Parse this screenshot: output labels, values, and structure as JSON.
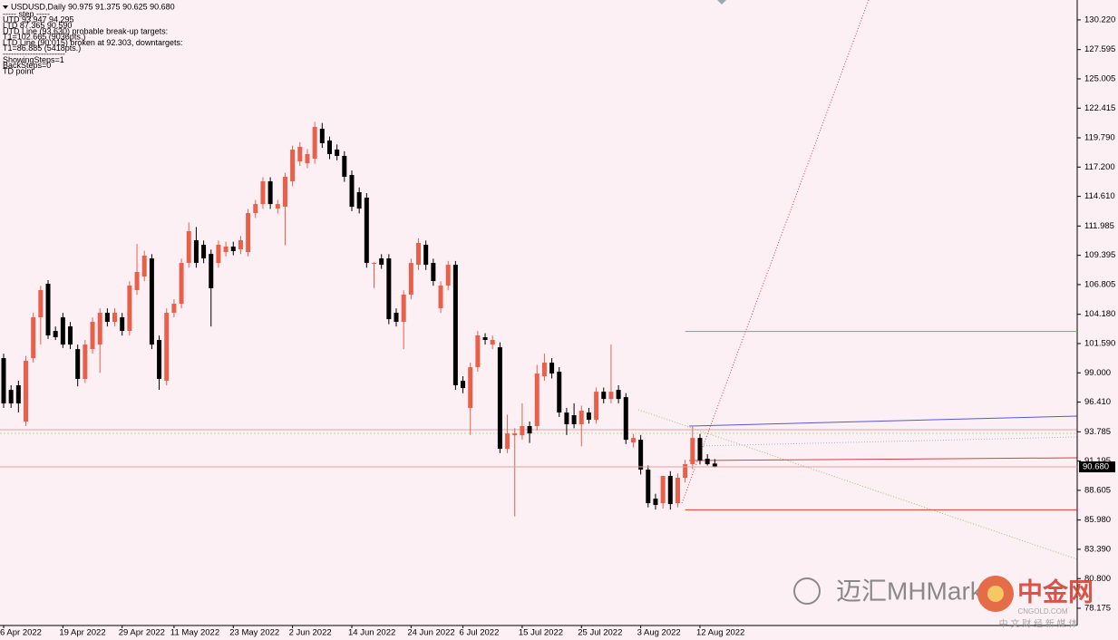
{
  "chart_data": {
    "type": "candlestick",
    "header": "USDUSD,Daily  90.975 91.375 90.625 90.680",
    "annotations": [
      "----- step -----",
      "UTD 93.947 94.295",
      "LTD 87.365 90.590",
      "UTD Line (93.630) probable break-up targets:",
      "T1=102.665 (9036pts.)",
      "LTD Line (90.015) broken at 92.303, downtargets:",
      "T1=86.885 (5418pts.)",
      "-----------------------",
      "ShowingSteps=1",
      "BackSteps=0",
      "TD point"
    ],
    "categories": [
      "6 Apr 2022",
      null,
      null,
      null,
      null,
      null,
      null,
      null,
      "19 Apr 2022",
      null,
      null,
      null,
      null,
      null,
      null,
      null,
      "29 Apr 2022",
      null,
      null,
      null,
      null,
      null,
      null,
      "11 May 2022",
      null,
      null,
      null,
      null,
      null,
      null,
      null,
      "23 May 2022",
      null,
      null,
      null,
      null,
      null,
      null,
      null,
      "2 Jun 2022",
      null,
      null,
      null,
      null,
      null,
      null,
      null,
      "14 Jun 2022",
      null,
      null,
      null,
      null,
      null,
      null,
      null,
      "24 Jun 2022",
      null,
      null,
      null,
      null,
      null,
      null,
      "6 Jul 2022",
      null,
      null,
      null,
      null,
      null,
      null,
      null,
      "15 Jul 2022",
      null,
      null,
      null,
      null,
      null,
      null,
      null,
      "25 Jul 2022",
      null,
      null,
      null,
      null,
      null,
      null,
      null,
      "3 Aug 2022",
      null,
      null,
      null,
      null,
      null,
      null,
      null,
      "12 Aug 2022",
      null,
      null
    ],
    "ohlc": [
      [
        100.3,
        100.7,
        95.9,
        96.29
      ],
      [
        97.49,
        97.9,
        95.9,
        96.29
      ],
      [
        97.9,
        98.3,
        95.5,
        96.29
      ],
      [
        94.69,
        100.5,
        94.3,
        100.06
      ],
      [
        100.3,
        104.3,
        99.9,
        103.91
      ],
      [
        103.91,
        106.7,
        101.5,
        106.32
      ],
      [
        106.88,
        107.2,
        102,
        102.31
      ],
      [
        102.71,
        103.1,
        101.9,
        102.15
      ],
      [
        103.91,
        104.3,
        101.2,
        101.5
      ],
      [
        103.11,
        103.5,
        101.1,
        101.5
      ],
      [
        101.1,
        101.5,
        97.8,
        98.46
      ],
      [
        98.46,
        101.9,
        98.1,
        101.5
      ],
      [
        101.1,
        103.9,
        100.7,
        103.51
      ],
      [
        101.5,
        104.7,
        99,
        104.31
      ],
      [
        104.31,
        104.7,
        103.1,
        103.51
      ],
      [
        103.51,
        104.7,
        103.1,
        104.31
      ],
      [
        103.91,
        104.3,
        102.3,
        102.71
      ],
      [
        102.71,
        107.1,
        102.3,
        106.72
      ],
      [
        106.32,
        110.4,
        105.9,
        107.92
      ],
      [
        107.52,
        109.8,
        107.1,
        109.37
      ],
      [
        109.12,
        109.5,
        101.1,
        101.5
      ],
      [
        101.91,
        102.3,
        97.5,
        98.46
      ],
      [
        98.3,
        104.7,
        97.9,
        104.31
      ],
      [
        104.31,
        105.5,
        103.9,
        105.11
      ],
      [
        105.11,
        109.1,
        104.7,
        108.72
      ],
      [
        108.72,
        112.3,
        108.3,
        111.53
      ],
      [
        110.73,
        111.9,
        108.3,
        108.72
      ],
      [
        110.33,
        110.7,
        108.7,
        109.12
      ],
      [
        109.52,
        109.9,
        103.1,
        106.48
      ],
      [
        108.72,
        110.7,
        108.3,
        110.33
      ],
      [
        109.68,
        110.6,
        109.3,
        110.17
      ],
      [
        110.17,
        110.6,
        109.4,
        109.77
      ],
      [
        109.93,
        111.1,
        109.5,
        110.73
      ],
      [
        109.68,
        113.5,
        109.3,
        113.13
      ],
      [
        113.13,
        114.3,
        112.7,
        113.93
      ],
      [
        113.93,
        116.3,
        113.5,
        115.94
      ],
      [
        115.94,
        116.3,
        113.5,
        113.93
      ],
      [
        113.53,
        114.3,
        113.1,
        113.93
      ],
      [
        113.69,
        116.7,
        110.3,
        116.34
      ],
      [
        115.94,
        119.1,
        115.5,
        118.75
      ],
      [
        117.71,
        119.4,
        117.3,
        118.99
      ],
      [
        117.54,
        118.8,
        117.1,
        118.35
      ],
      [
        117.95,
        121.2,
        117.5,
        120.75
      ],
      [
        120.59,
        121.1,
        118.9,
        119.31
      ],
      [
        119.55,
        119.9,
        117.9,
        118.35
      ],
      [
        118.75,
        119.2,
        117.8,
        118.19
      ],
      [
        118.19,
        118.6,
        115.9,
        116.34
      ],
      [
        116.5,
        116.9,
        113.3,
        113.69
      ],
      [
        114.98,
        115.4,
        113.1,
        113.53
      ],
      [
        114.5,
        114.9,
        108.3,
        108.72
      ],
      [
        108.7,
        108.8,
        106.5,
        108.72
      ],
      [
        109.12,
        109.5,
        108.2,
        108.56
      ],
      [
        109.12,
        109.5,
        103.3,
        103.75
      ],
      [
        104.31,
        104.7,
        103.1,
        103.51
      ],
      [
        103.51,
        106.3,
        101.1,
        105.92
      ],
      [
        105.92,
        109.1,
        105.5,
        108.72
      ],
      [
        108.56,
        110.9,
        108.1,
        110.49
      ],
      [
        110.33,
        110.7,
        108.1,
        108.56
      ],
      [
        108.72,
        109.1,
        106.7,
        107.12
      ],
      [
        104.71,
        107.1,
        104.3,
        106.72
      ],
      [
        106.72,
        108.9,
        106.3,
        108.56
      ],
      [
        108.56,
        108.9,
        97.5,
        97.9
      ],
      [
        98.3,
        98.7,
        97.2,
        97.65
      ],
      [
        95.89,
        99.9,
        93.5,
        99.5
      ],
      [
        99.5,
        102.7,
        99.1,
        102.31
      ],
      [
        102.15,
        102.5,
        101.5,
        101.91
      ],
      [
        101.5,
        102.3,
        101.1,
        101.91
      ],
      [
        101.26,
        101.7,
        91.9,
        92.28
      ],
      [
        92.28,
        95.3,
        91.9,
        93.64
      ],
      [
        93.48,
        94.1,
        86.3,
        93.64
      ],
      [
        93.48,
        96.3,
        93.1,
        94.29
      ],
      [
        94.29,
        94.7,
        92.8,
        93.64
      ],
      [
        94.29,
        99.7,
        93.9,
        98.94
      ],
      [
        98.7,
        100.7,
        98.3,
        99.9
      ],
      [
        99.9,
        100.3,
        98.5,
        98.94
      ],
      [
        99.1,
        99.5,
        95.1,
        95.49
      ],
      [
        95.49,
        95.9,
        93.5,
        94.45
      ],
      [
        95.25,
        96.3,
        94.1,
        94.45
      ],
      [
        94.45,
        96.1,
        92.5,
        95.65
      ],
      [
        95.49,
        95.9,
        94.5,
        94.85
      ],
      [
        94.85,
        97.7,
        94.5,
        97.33
      ],
      [
        97.33,
        97.7,
        96.3,
        96.69
      ],
      [
        96.69,
        101.5,
        96.3,
        97.33
      ],
      [
        97.49,
        97.9,
        96.3,
        96.69
      ],
      [
        96.85,
        97.2,
        92.7,
        93.08
      ],
      [
        92.84,
        93.6,
        92.4,
        93.24
      ],
      [
        93.08,
        93.5,
        90.0,
        90.44
      ],
      [
        90.44,
        90.8,
        87.1,
        87.47
      ],
      [
        87.87,
        88.3,
        86.9,
        87.31
      ],
      [
        87.47,
        89.9,
        87.0,
        89.88
      ],
      [
        89.88,
        90.3,
        86.9,
        87.39
      ],
      [
        87.47,
        90.1,
        87.1,
        89.72
      ],
      [
        89.72,
        91.3,
        89.3,
        90.92
      ],
      [
        90.92,
        94.3,
        90.5,
        93.24
      ],
      [
        93.24,
        93.6,
        90.9,
        91.24
      ],
      [
        91.4,
        91.8,
        90.8,
        90.92
      ],
      [
        90.975,
        91.375,
        90.625,
        90.68
      ]
    ],
    "up_color": "#e8604a",
    "down_color": "#000000",
    "last_price_label": "90.680",
    "levels": [
      {
        "value": 102.665,
        "color": "#5cb85c"
      },
      {
        "value": 86.885,
        "color": "#e53935"
      }
    ],
    "ylim": [
      76.65,
      131.98
    ],
    "yticks": [
      {
        "value": 130.22,
        "label": "130.220"
      },
      {
        "value": 127.595,
        "label": "127.595"
      },
      {
        "value": 125.005,
        "label": "125.005"
      },
      {
        "value": 122.415,
        "label": "122.415"
      },
      {
        "value": 119.79,
        "label": "119.790"
      },
      {
        "value": 117.2,
        "label": "117.200"
      },
      {
        "value": 114.61,
        "label": "114.610"
      },
      {
        "value": 111.985,
        "label": "111.985"
      },
      {
        "value": 109.395,
        "label": "109.395"
      },
      {
        "value": 106.805,
        "label": "106.805"
      },
      {
        "value": 104.18,
        "label": "104.180"
      },
      {
        "value": 101.59,
        "label": "101.590"
      },
      {
        "value": 99.0,
        "label": "99.000"
      },
      {
        "value": 96.41,
        "label": "96.410"
      },
      {
        "value": 93.785,
        "label": "93.785"
      },
      {
        "value": 91.195,
        "label": "91.195"
      },
      {
        "value": 88.605,
        "label": "88.605"
      },
      {
        "value": 85.98,
        "label": "85.980"
      },
      {
        "value": 83.39,
        "label": "83.390"
      },
      {
        "value": 80.8,
        "label": "80.800"
      },
      {
        "value": 78.175,
        "label": "78.175"
      }
    ],
    "watermark": {
      "title": "迈汇MHMarket",
      "logo": "中金网",
      "site": "CNGOLD.COM",
      "tagline": "中 文 财 经 新 媒 体"
    }
  }
}
